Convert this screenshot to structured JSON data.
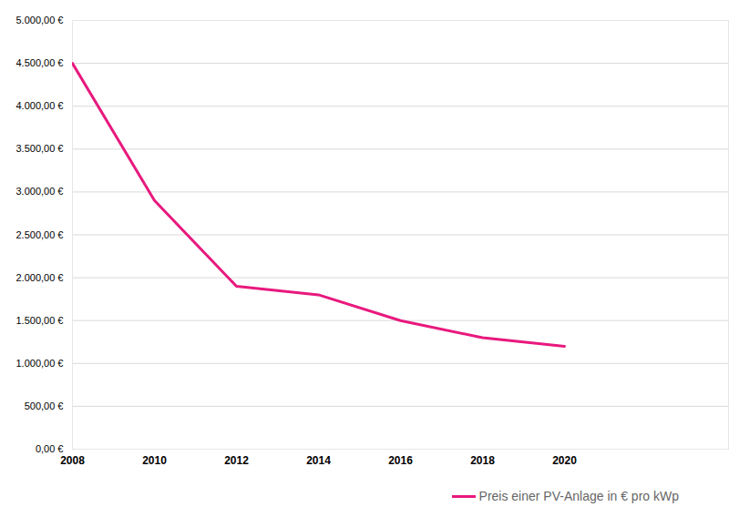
{
  "chart_data": {
    "type": "line",
    "x": [
      2008,
      2010,
      2012,
      2014,
      2016,
      2018,
      2020
    ],
    "series": [
      {
        "name": "Preis einer PV-Anlage in € pro kWp",
        "color": "#e8197e",
        "values": [
          4500,
          2900,
          1900,
          1800,
          1500,
          1300,
          1200
        ]
      }
    ],
    "xlim": [
      2008,
      2024
    ],
    "xticks": [
      2008,
      2010,
      2012,
      2014,
      2016,
      2018,
      2020
    ],
    "ylim": [
      0,
      5000
    ],
    "yticks": [
      {
        "value": 0,
        "label": "0,00 €"
      },
      {
        "value": 500,
        "label": "500,00 €"
      },
      {
        "value": 1000,
        "label": "1.000,00 €"
      },
      {
        "value": 1500,
        "label": "1.500,00 €"
      },
      {
        "value": 2000,
        "label": "2.000,00 €"
      },
      {
        "value": 2500,
        "label": "2.500,00 €"
      },
      {
        "value": 3000,
        "label": "3.000,00 €"
      },
      {
        "value": 3500,
        "label": "3.500,00 €"
      },
      {
        "value": 4000,
        "label": "4.000,00 €"
      },
      {
        "value": 4500,
        "label": "4.500,00 €"
      },
      {
        "value": 5000,
        "label": "5.000,00 €"
      }
    ],
    "grid": true,
    "legend": "bottom-right"
  }
}
